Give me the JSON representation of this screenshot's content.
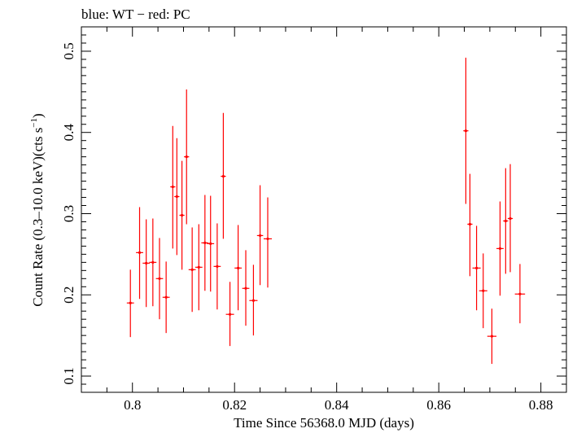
{
  "chart_data": {
    "type": "scatter",
    "title": "blue: WT − red: PC",
    "xlabel": "Time Since 56368.0 MJD (days)",
    "ylabel_main": "Count Rate (0.3–10.0 keV)(cts s",
    "ylabel_sup": "−1",
    "ylabel_close": ")",
    "xlim": [
      0.79,
      0.885
    ],
    "ylim": [
      0.08,
      0.53
    ],
    "xticks": [
      0.8,
      0.82,
      0.84,
      0.86,
      0.88
    ],
    "xtick_labels": [
      "0.8",
      "0.82",
      "0.84",
      "0.86",
      "0.88"
    ],
    "yticks": [
      0.1,
      0.2,
      0.3,
      0.4,
      0.5
    ],
    "ytick_labels": [
      "0.1",
      "0.2",
      "0.3",
      "0.4",
      "0.5"
    ],
    "grid": false,
    "colors": {
      "pc": "#ff0000",
      "axes": "#000000"
    },
    "series": [
      {
        "mode": "PC",
        "color": "#ff0000",
        "points": [
          {
            "x": 0.7996,
            "y": 0.19,
            "xerr": 0.0007,
            "ylo": 0.148,
            "yhi": 0.231
          },
          {
            "x": 0.8014,
            "y": 0.252,
            "xerr": 0.0007,
            "ylo": 0.195,
            "yhi": 0.308
          },
          {
            "x": 0.8027,
            "y": 0.239,
            "xerr": 0.0007,
            "ylo": 0.185,
            "yhi": 0.293
          },
          {
            "x": 0.804,
            "y": 0.24,
            "xerr": 0.0007,
            "ylo": 0.186,
            "yhi": 0.294
          },
          {
            "x": 0.8053,
            "y": 0.22,
            "xerr": 0.0007,
            "ylo": 0.17,
            "yhi": 0.27
          },
          {
            "x": 0.8066,
            "y": 0.197,
            "xerr": 0.0007,
            "ylo": 0.153,
            "yhi": 0.241
          },
          {
            "x": 0.8079,
            "y": 0.333,
            "xerr": 0.0005,
            "ylo": 0.257,
            "yhi": 0.408
          },
          {
            "x": 0.8087,
            "y": 0.321,
            "xerr": 0.0005,
            "ylo": 0.249,
            "yhi": 0.393
          },
          {
            "x": 0.8097,
            "y": 0.298,
            "xerr": 0.0005,
            "ylo": 0.231,
            "yhi": 0.365
          },
          {
            "x": 0.8106,
            "y": 0.37,
            "xerr": 0.0005,
            "ylo": 0.287,
            "yhi": 0.453
          },
          {
            "x": 0.8117,
            "y": 0.231,
            "xerr": 0.0007,
            "ylo": 0.179,
            "yhi": 0.283
          },
          {
            "x": 0.813,
            "y": 0.234,
            "xerr": 0.0007,
            "ylo": 0.181,
            "yhi": 0.287
          },
          {
            "x": 0.8142,
            "y": 0.264,
            "xerr": 0.0007,
            "ylo": 0.205,
            "yhi": 0.323
          },
          {
            "x": 0.8153,
            "y": 0.263,
            "xerr": 0.0007,
            "ylo": 0.204,
            "yhi": 0.322
          },
          {
            "x": 0.8166,
            "y": 0.235,
            "xerr": 0.0007,
            "ylo": 0.182,
            "yhi": 0.288
          },
          {
            "x": 0.8178,
            "y": 0.346,
            "xerr": 0.0005,
            "ylo": 0.269,
            "yhi": 0.424
          },
          {
            "x": 0.8191,
            "y": 0.176,
            "xerr": 0.0008,
            "ylo": 0.137,
            "yhi": 0.216
          },
          {
            "x": 0.8207,
            "y": 0.233,
            "xerr": 0.0007,
            "ylo": 0.181,
            "yhi": 0.286
          },
          {
            "x": 0.8222,
            "y": 0.208,
            "xerr": 0.0007,
            "ylo": 0.162,
            "yhi": 0.255
          },
          {
            "x": 0.8237,
            "y": 0.193,
            "xerr": 0.0008,
            "ylo": 0.15,
            "yhi": 0.237
          },
          {
            "x": 0.825,
            "y": 0.273,
            "xerr": 0.0006,
            "ylo": 0.212,
            "yhi": 0.335
          },
          {
            "x": 0.8265,
            "y": 0.269,
            "xerr": 0.0008,
            "ylo": 0.209,
            "yhi": 0.32
          },
          {
            "x": 0.8653,
            "y": 0.402,
            "xerr": 0.0005,
            "ylo": 0.312,
            "yhi": 0.492
          },
          {
            "x": 0.8661,
            "y": 0.287,
            "xerr": 0.0005,
            "ylo": 0.223,
            "yhi": 0.349
          },
          {
            "x": 0.8674,
            "y": 0.233,
            "xerr": 0.0008,
            "ylo": 0.181,
            "yhi": 0.285
          },
          {
            "x": 0.8687,
            "y": 0.205,
            "xerr": 0.0008,
            "ylo": 0.159,
            "yhi": 0.251
          },
          {
            "x": 0.8704,
            "y": 0.149,
            "xerr": 0.0009,
            "ylo": 0.115,
            "yhi": 0.183
          },
          {
            "x": 0.872,
            "y": 0.257,
            "xerr": 0.0007,
            "ylo": 0.199,
            "yhi": 0.315
          },
          {
            "x": 0.8731,
            "y": 0.291,
            "xerr": 0.0005,
            "ylo": 0.226,
            "yhi": 0.356
          },
          {
            "x": 0.874,
            "y": 0.294,
            "xerr": 0.0005,
            "ylo": 0.228,
            "yhi": 0.361
          },
          {
            "x": 0.8759,
            "y": 0.201,
            "xerr": 0.001,
            "ylo": 0.165,
            "yhi": 0.238
          }
        ]
      }
    ]
  }
}
